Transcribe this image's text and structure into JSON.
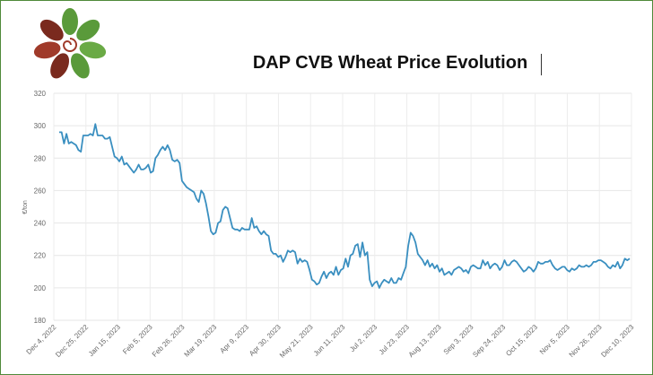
{
  "header": {
    "title": "DAP CVB Wheat Price Evolution",
    "logo_colors": [
      "#7a2a1e",
      "#5a9a3a",
      "#a03a2a",
      "#6aaa45"
    ]
  },
  "chart_data": {
    "type": "line",
    "title": "DAP CVB Wheat Price Evolution",
    "xlabel": "",
    "ylabel": "€/ton",
    "ylim": [
      180,
      320
    ],
    "yticks": [
      180,
      200,
      220,
      240,
      260,
      280,
      300,
      320
    ],
    "xticks": [
      "Dec 4, 2022",
      "Dec 25, 2022",
      "Jan 15, 2023",
      "Feb 5, 2023",
      "Feb 26, 2023",
      "Mar 19, 2023",
      "Apr 9, 2023",
      "Apr 30, 2023",
      "May 21, 2023",
      "Jun 11, 2023",
      "Jul 2, 2023",
      "Jul 23, 2023",
      "Aug 13, 2023",
      "Sep 3, 2023",
      "Sep 24, 2023",
      "Oct 15, 2023",
      "Nov 5, 2023",
      "Nov 26, 2023",
      "Dec 10, 2023"
    ],
    "grid": true,
    "line_color": "#3a8fc0",
    "series": [
      {
        "values": [
          296,
          296,
          289,
          295,
          289,
          290,
          289,
          288,
          285,
          284,
          294,
          294,
          294,
          295,
          294,
          301,
          294,
          294,
          294,
          292,
          292,
          293,
          287,
          281,
          280,
          278,
          281,
          276,
          277,
          275,
          273,
          271,
          273,
          276,
          273,
          273,
          274,
          276,
          271,
          272,
          280,
          282,
          285,
          287,
          285,
          288,
          285,
          279,
          278,
          279,
          277,
          266,
          264,
          262,
          261,
          260,
          259,
          255,
          253,
          260,
          258,
          252,
          244,
          235,
          233,
          234,
          240,
          241,
          248,
          250,
          249,
          243,
          237,
          236,
          236,
          235,
          237,
          236,
          236,
          236,
          243,
          237,
          238,
          235,
          233,
          235,
          233,
          232,
          223,
          221,
          221,
          219,
          220,
          216,
          219,
          223,
          222,
          223,
          222,
          215,
          218,
          216,
          217,
          216,
          211,
          205,
          204,
          202,
          203,
          207,
          210,
          206,
          209,
          210,
          208,
          213,
          208,
          211,
          212,
          218,
          213,
          220,
          221,
          226,
          227,
          219,
          228,
          220,
          222,
          205,
          201,
          203,
          204,
          200,
          203,
          205,
          204,
          203,
          206,
          203,
          203,
          206,
          205,
          209,
          213,
          226,
          234,
          232,
          228,
          221,
          219,
          217,
          214,
          217,
          213,
          215,
          212,
          214,
          210,
          212,
          208,
          209,
          210,
          208,
          211,
          212,
          213,
          212,
          210,
          211,
          209,
          213,
          214,
          213,
          212,
          212,
          217,
          214,
          216,
          212,
          214,
          215,
          214,
          211,
          213,
          217,
          214,
          214,
          216,
          217,
          216,
          214,
          212,
          210,
          211,
          213,
          212,
          210,
          212,
          216,
          215,
          215,
          216,
          216,
          217,
          214,
          212,
          211,
          212,
          213,
          213,
          211,
          210,
          212,
          211,
          212,
          214,
          213,
          213,
          214,
          213,
          214,
          216,
          216,
          217,
          217,
          216,
          215,
          213,
          212,
          214,
          213,
          216,
          212,
          214,
          218,
          217,
          218
        ]
      }
    ]
  }
}
